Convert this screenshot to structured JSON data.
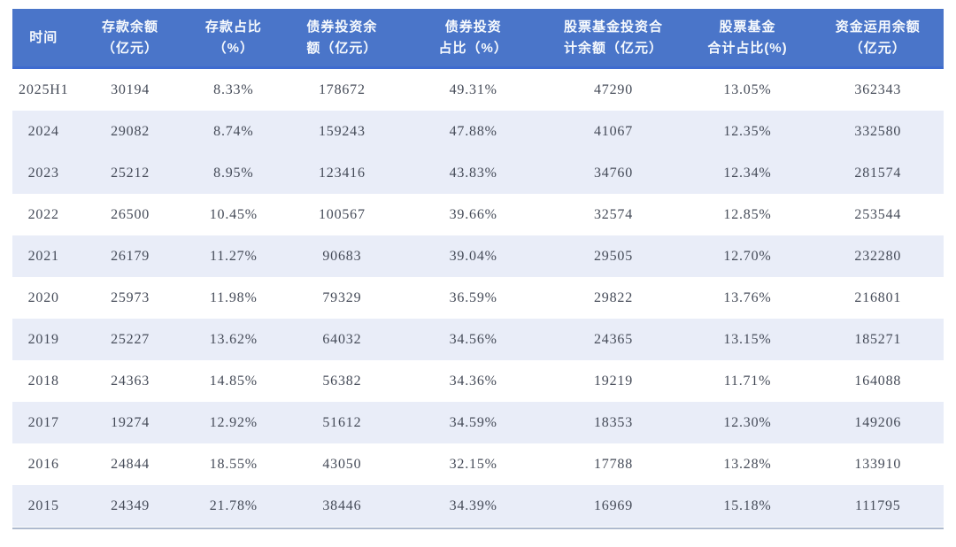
{
  "chart_data": {
    "type": "table",
    "columns": [
      "时间",
      "存款余额\n（亿元）",
      "存款占比\n（%）",
      "债券投资余\n额（亿元）",
      "债券投资\n占比（%）",
      "股票基金投资合\n计余额（亿元）",
      "股票基金\n合计占比(%)",
      "资金运用余额\n（亿元）"
    ],
    "rows": [
      [
        "2025H1",
        "30194",
        "8.33%",
        "178672",
        "49.31%",
        "47290",
        "13.05%",
        "362343"
      ],
      [
        "2024",
        "29082",
        "8.74%",
        "159243",
        "47.88%",
        "41067",
        "12.35%",
        "332580"
      ],
      [
        "2023",
        "25212",
        "8.95%",
        "123416",
        "43.83%",
        "34760",
        "12.34%",
        "281574"
      ],
      [
        "2022",
        "26500",
        "10.45%",
        "100567",
        "39.66%",
        "32574",
        "12.85%",
        "253544"
      ],
      [
        "2021",
        "26179",
        "11.27%",
        "90683",
        "39.04%",
        "29505",
        "12.70%",
        "232280"
      ],
      [
        "2020",
        "25973",
        "11.98%",
        "79329",
        "36.59%",
        "29822",
        "13.76%",
        "216801"
      ],
      [
        "2019",
        "25227",
        "13.62%",
        "64032",
        "34.56%",
        "24365",
        "13.15%",
        "185271"
      ],
      [
        "2018",
        "24363",
        "14.85%",
        "56382",
        "34.36%",
        "19219",
        "11.71%",
        "164088"
      ],
      [
        "2017",
        "19274",
        "12.92%",
        "51612",
        "34.59%",
        "18353",
        "12.30%",
        "149206"
      ],
      [
        "2016",
        "24844",
        "18.55%",
        "43050",
        "32.15%",
        "17788",
        "13.28%",
        "133910"
      ],
      [
        "2015",
        "24349",
        "21.78%",
        "38446",
        "34.39%",
        "16969",
        "15.18%",
        "111795"
      ]
    ],
    "shaded_row_indices": [
      1,
      2,
      4,
      6,
      8,
      10
    ],
    "layout": {
      "grid": "row-banding",
      "legend": "none",
      "header_align": "center",
      "cell_align": "center"
    }
  },
  "colors": {
    "header_bg": "#4a75c9",
    "header_text": "#f7fafd",
    "header_bottom_border": "#3e6bd0",
    "row_shaded_bg": "#e9edf8",
    "row_plain_bg": "#ffffff",
    "body_text": "#454b58",
    "bottom_rule": "#aebacf",
    "page_bg": "#ffffff"
  }
}
